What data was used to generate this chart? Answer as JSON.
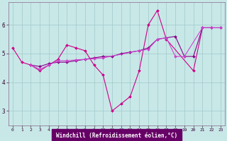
{
  "background_color": "#c8e8e8",
  "grid_color": "#a0c8c8",
  "line_series": [
    {
      "color": "#cc0088",
      "x": [
        0,
        1,
        2,
        3,
        4,
        5,
        6,
        7,
        8,
        9,
        10,
        11,
        12,
        13,
        14,
        15,
        16,
        17,
        20,
        21,
        22
      ],
      "y": [
        5.2,
        4.7,
        4.6,
        4.4,
        4.6,
        4.8,
        5.3,
        5.2,
        5.1,
        4.6,
        4.25,
        3.0,
        3.25,
        3.5,
        4.4,
        6.0,
        6.5,
        5.5,
        4.4,
        5.9,
        5.9
      ]
    },
    {
      "color": "#880088",
      "x": [
        2,
        3,
        4,
        5,
        6,
        7,
        8,
        9,
        10,
        11,
        12,
        13,
        14,
        15,
        16,
        17,
        18,
        19,
        20,
        21,
        22,
        23
      ],
      "y": [
        4.6,
        4.55,
        4.65,
        4.7,
        4.7,
        4.75,
        4.8,
        4.85,
        4.9,
        4.9,
        5.0,
        5.05,
        5.1,
        5.2,
        5.5,
        5.55,
        5.6,
        4.9,
        4.9,
        5.9,
        5.9,
        5.9
      ]
    },
    {
      "color": "#cc44cc",
      "x": [
        2,
        3,
        4,
        5,
        6,
        7,
        8,
        9,
        10,
        14,
        15,
        16,
        17,
        18,
        19,
        21,
        22,
        23
      ],
      "y": [
        4.6,
        4.45,
        4.6,
        4.75,
        4.75,
        4.78,
        4.8,
        4.82,
        4.85,
        5.1,
        5.15,
        5.5,
        5.55,
        4.9,
        4.9,
        5.9,
        5.9,
        5.9
      ]
    }
  ],
  "xlim": [
    -0.5,
    23.5
  ],
  "ylim": [
    2.5,
    6.8
  ],
  "yticks": [
    3,
    4,
    5,
    6
  ],
  "xticks": [
    0,
    1,
    2,
    3,
    4,
    5,
    6,
    7,
    8,
    9,
    10,
    11,
    12,
    13,
    14,
    15,
    16,
    17,
    18,
    19,
    20,
    21,
    22,
    23
  ],
  "xlabel": "Windchill (Refroidissement éolien,°C)",
  "xlabel_color": "#ffffff",
  "xlabel_bg": "#660066",
  "marker": "D",
  "markersize": 2.0,
  "linewidth": 0.8
}
